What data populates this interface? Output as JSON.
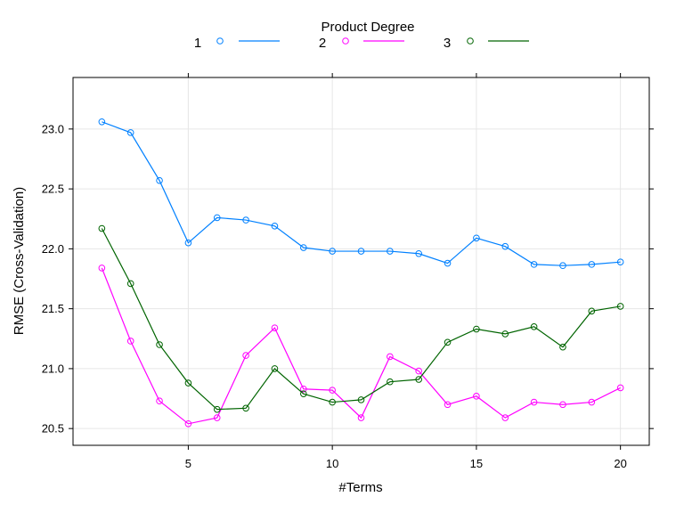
{
  "chart_data": {
    "type": "line",
    "title": "",
    "xlabel": "#Terms",
    "ylabel": "RMSE (Cross-Validation)",
    "xlim": [
      1.0,
      21.0
    ],
    "ylim": [
      20.36,
      23.43
    ],
    "x_ticks": [
      5,
      10,
      15,
      20
    ],
    "y_ticks": [
      20.5,
      21.0,
      21.5,
      22.0,
      22.5,
      23.0
    ],
    "x_tick_labels": [
      "5",
      "10",
      "15",
      "20"
    ],
    "y_tick_labels": [
      "20.5",
      "21.0",
      "21.5",
      "22.0",
      "22.5",
      "23.0"
    ],
    "grid": true,
    "legend": {
      "title": "Product Degree",
      "placement": "top"
    },
    "x": [
      2,
      3,
      4,
      5,
      6,
      7,
      8,
      9,
      10,
      11,
      12,
      13,
      14,
      15,
      16,
      17,
      18,
      19,
      20
    ],
    "series": [
      {
        "name": "1",
        "color": "#0080ff",
        "values": [
          23.06,
          22.97,
          22.57,
          22.05,
          22.26,
          22.24,
          22.19,
          22.01,
          21.98,
          21.98,
          21.98,
          21.96,
          21.88,
          22.09,
          22.02,
          21.87,
          21.86,
          21.87,
          21.89
        ]
      },
      {
        "name": "2",
        "color": "#ff00ff",
        "values": [
          21.84,
          21.23,
          20.73,
          20.54,
          20.59,
          21.11,
          21.34,
          20.83,
          20.82,
          20.59,
          21.1,
          20.98,
          20.7,
          20.77,
          20.59,
          20.72,
          20.7,
          20.72,
          20.84
        ]
      },
      {
        "name": "3",
        "color": "#006400",
        "values": [
          22.17,
          21.71,
          21.2,
          20.88,
          20.66,
          20.67,
          21.0,
          20.79,
          20.72,
          20.74,
          20.89,
          20.91,
          21.22,
          21.33,
          21.29,
          21.35,
          21.18,
          21.48,
          21.52
        ]
      }
    ]
  }
}
